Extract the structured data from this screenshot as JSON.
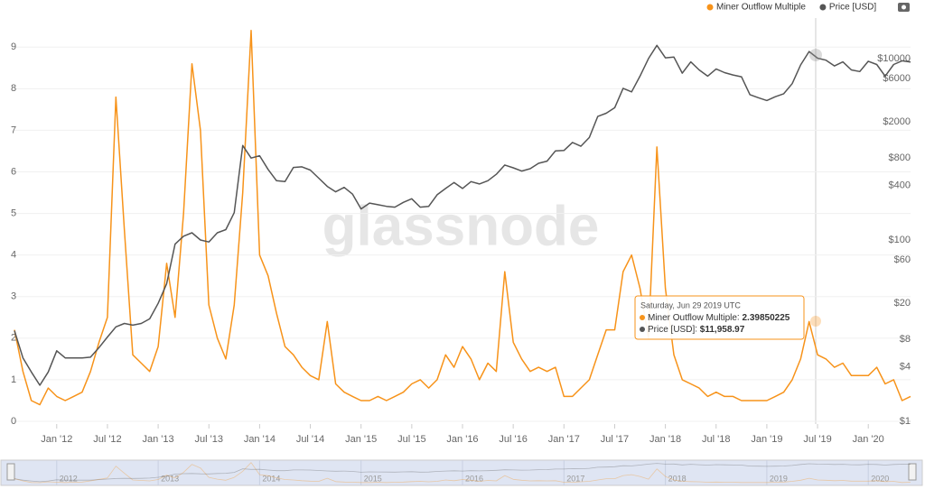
{
  "chart_data": {
    "type": "line",
    "watermark": "glassnode",
    "x": [
      "2011-08",
      "2011-09",
      "2011-10",
      "2011-11",
      "2011-12",
      "2012-01",
      "2012-02",
      "2012-03",
      "2012-04",
      "2012-05",
      "2012-06",
      "2012-07",
      "2012-08",
      "2012-09",
      "2012-10",
      "2012-11",
      "2012-12",
      "2013-01",
      "2013-02",
      "2013-03",
      "2013-04",
      "2013-05",
      "2013-06",
      "2013-07",
      "2013-08",
      "2013-09",
      "2013-10",
      "2013-11",
      "2013-12",
      "2014-01",
      "2014-02",
      "2014-03",
      "2014-04",
      "2014-05",
      "2014-06",
      "2014-07",
      "2014-08",
      "2014-09",
      "2014-10",
      "2014-11",
      "2014-12",
      "2015-01",
      "2015-02",
      "2015-03",
      "2015-04",
      "2015-05",
      "2015-06",
      "2015-07",
      "2015-08",
      "2015-09",
      "2015-10",
      "2015-11",
      "2015-12",
      "2016-01",
      "2016-02",
      "2016-03",
      "2016-04",
      "2016-05",
      "2016-06",
      "2016-07",
      "2016-08",
      "2016-09",
      "2016-10",
      "2016-11",
      "2016-12",
      "2017-01",
      "2017-02",
      "2017-03",
      "2017-04",
      "2017-05",
      "2017-06",
      "2017-07",
      "2017-08",
      "2017-09",
      "2017-10",
      "2017-11",
      "2017-12",
      "2018-01",
      "2018-02",
      "2018-03",
      "2018-04",
      "2018-05",
      "2018-06",
      "2018-07",
      "2018-08",
      "2018-09",
      "2018-10",
      "2018-11",
      "2018-12",
      "2019-01",
      "2019-02",
      "2019-03",
      "2019-04",
      "2019-05",
      "2019-06",
      "2019-07",
      "2019-08",
      "2019-09",
      "2019-10",
      "2019-11",
      "2019-12",
      "2020-01",
      "2020-02",
      "2020-03",
      "2020-04",
      "2020-05",
      "2020-06"
    ],
    "series": [
      {
        "name": "Miner Outflow Multiple",
        "color": "#f7931a",
        "axis": "y",
        "values": [
          2.2,
          1.2,
          0.5,
          0.4,
          0.8,
          0.6,
          0.5,
          0.6,
          0.7,
          1.2,
          1.9,
          2.5,
          7.8,
          4.6,
          1.6,
          1.4,
          1.2,
          1.8,
          3.8,
          2.5,
          5.0,
          8.6,
          7.0,
          2.8,
          2.0,
          1.5,
          2.8,
          5.5,
          9.4,
          4.0,
          3.5,
          2.6,
          1.8,
          1.6,
          1.3,
          1.1,
          1.0,
          2.4,
          0.9,
          0.7,
          0.6,
          0.5,
          0.5,
          0.6,
          0.5,
          0.6,
          0.7,
          0.9,
          1.0,
          0.8,
          1.0,
          1.6,
          1.3,
          1.8,
          1.5,
          1.0,
          1.4,
          1.2,
          3.6,
          1.9,
          1.5,
          1.2,
          1.3,
          1.2,
          1.3,
          0.6,
          0.6,
          0.8,
          1.0,
          1.6,
          2.2,
          2.2,
          3.6,
          4.0,
          3.2,
          2.0,
          6.6,
          3.2,
          1.6,
          1.0,
          0.9,
          0.8,
          0.6,
          0.7,
          0.6,
          0.6,
          0.5,
          0.5,
          0.5,
          0.5,
          0.6,
          0.7,
          1.0,
          1.5,
          2.4,
          1.6,
          1.5,
          1.3,
          1.4,
          1.1,
          1.1,
          1.1,
          1.3,
          0.9,
          1.0,
          0.5,
          0.6
        ]
      },
      {
        "name": "Price [USD]",
        "color": "#555555",
        "axis": "y2",
        "values": [
          10,
          5,
          3.5,
          2.5,
          3.5,
          6,
          5,
          5,
          5,
          5.1,
          6.5,
          8.5,
          11,
          12,
          11.5,
          12,
          13.5,
          20,
          33,
          90,
          110,
          120,
          100,
          95,
          120,
          130,
          200,
          1100,
          800,
          850,
          600,
          450,
          440,
          630,
          640,
          590,
          480,
          390,
          340,
          380,
          320,
          220,
          255,
          245,
          235,
          230,
          260,
          285,
          230,
          235,
          315,
          370,
          430,
          370,
          440,
          415,
          450,
          530,
          670,
          625,
          575,
          610,
          700,
          740,
          960,
          970,
          1190,
          1080,
          1350,
          2300,
          2500,
          2870,
          4700,
          4300,
          6400,
          10000,
          14000,
          10200,
          10400,
          6900,
          9200,
          7500,
          6400,
          7700,
          7000,
          6600,
          6300,
          4000,
          3700,
          3450,
          3800,
          4100,
          5300,
          8500,
          11959,
          10100,
          9600,
          8300,
          9200,
          7500,
          7200,
          9350,
          8600,
          6400,
          8600,
          9450,
          9150
        ]
      }
    ],
    "xlim": [
      "2011-08",
      "2020-06"
    ],
    "xticks": [
      {
        "value": "2012-01",
        "label": "Jan '12"
      },
      {
        "value": "2012-07",
        "label": "Jul '12"
      },
      {
        "value": "2013-01",
        "label": "Jan '13"
      },
      {
        "value": "2013-07",
        "label": "Jul '13"
      },
      {
        "value": "2014-01",
        "label": "Jan '14"
      },
      {
        "value": "2014-07",
        "label": "Jul '14"
      },
      {
        "value": "2015-01",
        "label": "Jan '15"
      },
      {
        "value": "2015-07",
        "label": "Jul '15"
      },
      {
        "value": "2016-01",
        "label": "Jan '16"
      },
      {
        "value": "2016-07",
        "label": "Jul '16"
      },
      {
        "value": "2017-01",
        "label": "Jan '17"
      },
      {
        "value": "2017-07",
        "label": "Jul '17"
      },
      {
        "value": "2018-01",
        "label": "Jan '18"
      },
      {
        "value": "2018-07",
        "label": "Jul '18"
      },
      {
        "value": "2019-01",
        "label": "Jan '19"
      },
      {
        "value": "2019-07",
        "label": "Jul '19"
      },
      {
        "value": "2020-01",
        "label": "Jan '20"
      }
    ],
    "ylim": [
      0,
      9.7
    ],
    "yticks": [
      0,
      1,
      2,
      3,
      4,
      5,
      6,
      7,
      8,
      9
    ],
    "y2lim": [
      1,
      28000
    ],
    "y2scale": "log",
    "y2ticks": [
      {
        "value": 1,
        "label": "$1"
      },
      {
        "value": 4,
        "label": "$4"
      },
      {
        "value": 8,
        "label": "$8"
      },
      {
        "value": 20,
        "label": "$20"
      },
      {
        "value": 60,
        "label": "$60"
      },
      {
        "value": 100,
        "label": "$100"
      },
      {
        "value": 400,
        "label": "$400"
      },
      {
        "value": 800,
        "label": "$800"
      },
      {
        "value": 2000,
        "label": "$2000"
      },
      {
        "value": 6000,
        "label": "$6000"
      },
      {
        "value": 10000,
        "label": "$10000"
      }
    ],
    "grid": true,
    "legend": "top-right",
    "tooltip": {
      "date": "Saturday, Jun 29 2019 UTC",
      "items": [
        {
          "name": "Miner Outflow Multiple",
          "value": 2.39850225
        },
        {
          "name": "Price [USD]",
          "value": "$11,958.97"
        }
      ]
    },
    "navigator": {
      "labels": [
        2012,
        2013,
        2014,
        2015,
        2016,
        2017,
        2018,
        2019,
        2020
      ]
    }
  }
}
